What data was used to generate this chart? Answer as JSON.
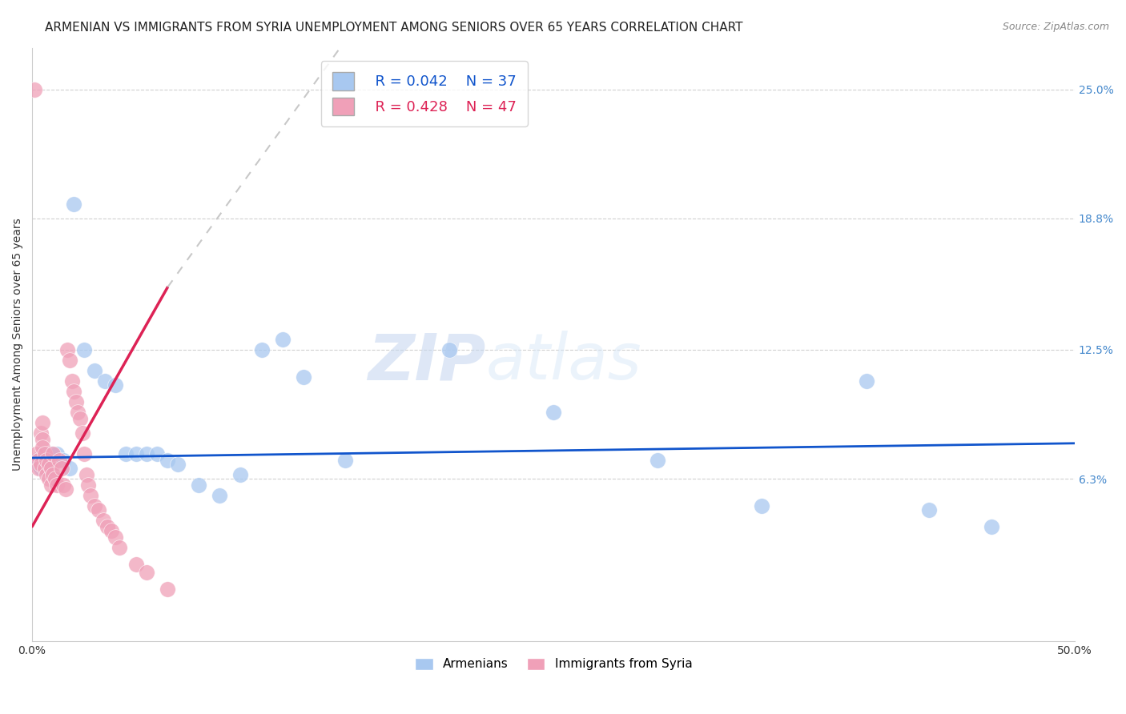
{
  "title": "ARMENIAN VS IMMIGRANTS FROM SYRIA UNEMPLOYMENT AMONG SENIORS OVER 65 YEARS CORRELATION CHART",
  "source": "Source: ZipAtlas.com",
  "ylabel": "Unemployment Among Seniors over 65 years",
  "xlim": [
    0.0,
    0.5
  ],
  "ylim": [
    -0.015,
    0.27
  ],
  "ytick_vals": [
    0.063,
    0.125,
    0.188,
    0.25
  ],
  "ytick_labels": [
    "6.3%",
    "12.5%",
    "18.8%",
    "25.0%"
  ],
  "xtick_vals": [
    0.0,
    0.05,
    0.1,
    0.15,
    0.2,
    0.25,
    0.3,
    0.35,
    0.4,
    0.45,
    0.5
  ],
  "xtick_labels": [
    "0.0%",
    "",
    "",
    "",
    "",
    "",
    "",
    "",
    "",
    "",
    "50.0%"
  ],
  "background_color": "#ffffff",
  "grid_color": "#d0d0d0",
  "armenian_color": "#a8c8f0",
  "syria_color": "#f0a0b8",
  "trend_armenian_color": "#1155cc",
  "trend_syria_color": "#dd2255",
  "trend_syria_dashed_color": "#c8c8c8",
  "legend_R_armenian": "R = 0.042",
  "legend_N_armenian": "N = 37",
  "legend_R_syria": "R = 0.428",
  "legend_N_syria": "N = 47",
  "armenian_x": [
    0.002,
    0.003,
    0.004,
    0.005,
    0.006,
    0.007,
    0.008,
    0.009,
    0.01,
    0.012,
    0.015,
    0.018,
    0.02,
    0.025,
    0.03,
    0.035,
    0.04,
    0.045,
    0.05,
    0.055,
    0.06,
    0.065,
    0.07,
    0.08,
    0.09,
    0.1,
    0.11,
    0.12,
    0.13,
    0.15,
    0.2,
    0.25,
    0.3,
    0.35,
    0.4,
    0.43,
    0.46
  ],
  "armenian_y": [
    0.072,
    0.07,
    0.068,
    0.075,
    0.07,
    0.068,
    0.072,
    0.075,
    0.07,
    0.075,
    0.072,
    0.068,
    0.195,
    0.125,
    0.115,
    0.11,
    0.108,
    0.075,
    0.075,
    0.075,
    0.075,
    0.072,
    0.07,
    0.06,
    0.055,
    0.065,
    0.125,
    0.13,
    0.112,
    0.072,
    0.125,
    0.095,
    0.072,
    0.05,
    0.11,
    0.048,
    0.04
  ],
  "syria_x": [
    0.001,
    0.002,
    0.003,
    0.003,
    0.004,
    0.004,
    0.005,
    0.005,
    0.005,
    0.006,
    0.006,
    0.007,
    0.007,
    0.008,
    0.008,
    0.009,
    0.009,
    0.01,
    0.01,
    0.011,
    0.012,
    0.013,
    0.014,
    0.015,
    0.016,
    0.017,
    0.018,
    0.019,
    0.02,
    0.021,
    0.022,
    0.023,
    0.024,
    0.025,
    0.026,
    0.027,
    0.028,
    0.03,
    0.032,
    0.034,
    0.036,
    0.038,
    0.04,
    0.042,
    0.05,
    0.055,
    0.065
  ],
  "syria_y": [
    0.25,
    0.075,
    0.072,
    0.068,
    0.085,
    0.07,
    0.09,
    0.082,
    0.078,
    0.075,
    0.068,
    0.072,
    0.065,
    0.07,
    0.063,
    0.068,
    0.06,
    0.075,
    0.065,
    0.063,
    0.06,
    0.072,
    0.068,
    0.06,
    0.058,
    0.125,
    0.12,
    0.11,
    0.105,
    0.1,
    0.095,
    0.092,
    0.085,
    0.075,
    0.065,
    0.06,
    0.055,
    0.05,
    0.048,
    0.043,
    0.04,
    0.038,
    0.035,
    0.03,
    0.022,
    0.018,
    0.01
  ],
  "watermark_zip": "ZIP",
  "watermark_atlas": "atlas",
  "title_fontsize": 11,
  "axis_label_fontsize": 10,
  "tick_fontsize": 10,
  "legend_fontsize": 13
}
